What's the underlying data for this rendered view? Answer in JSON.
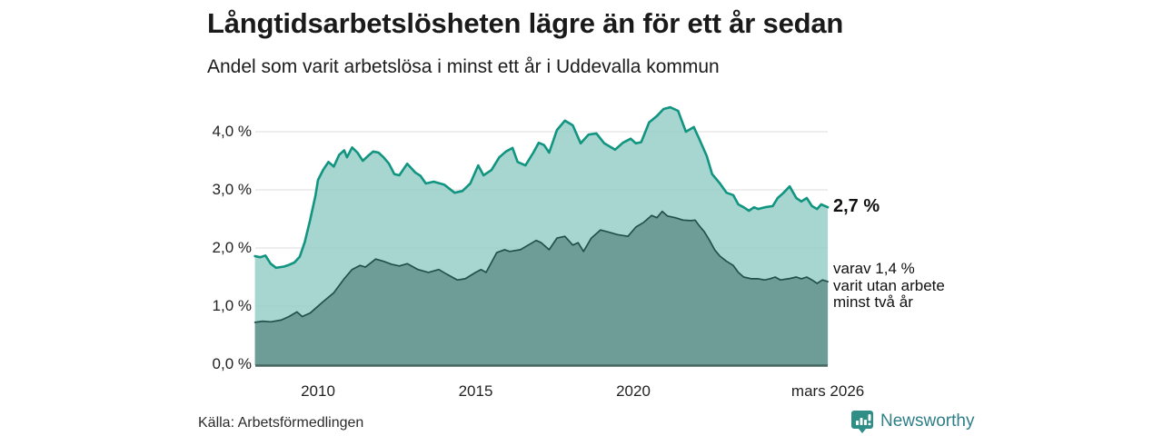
{
  "chart_data": {
    "type": "area",
    "title": "Långtidsarbetslösheten lägre än för ett år sedan",
    "subtitle": "Andel som varit arbetslösa i minst ett år i Uddevalla kommun",
    "xlim": [
      2008.0,
      2026.17
    ],
    "ylim": [
      0,
      4.5
    ],
    "grid": true,
    "legend_position": "end-of-line annotations",
    "y_ticks": [
      {
        "label": "0,0 %",
        "value": 0
      },
      {
        "label": "1,0 %",
        "value": 1
      },
      {
        "label": "2,0 %",
        "value": 2
      },
      {
        "label": "3,0 %",
        "value": 3
      },
      {
        "label": "4,0 %",
        "value": 4
      }
    ],
    "x_ticks": [
      {
        "label": "2010",
        "value": 2010
      },
      {
        "label": "2015",
        "value": 2015
      },
      {
        "label": "2020",
        "value": 2020
      },
      {
        "label": "mars 2026",
        "value": 2026.17
      }
    ],
    "annotations": {
      "total_end_value": "2,7 %",
      "two_years_end_note": "varav 1,4 %\nvarit utan arbete\nminst två år"
    },
    "series": [
      {
        "name": "arbetslösa minst ett år",
        "line_color": "#119480",
        "fill_color": "rgba(147,205,196,0.82)",
        "end_value_pct": 2.7,
        "points": [
          [
            2008.0,
            1.86
          ],
          [
            2008.17,
            1.84
          ],
          [
            2008.33,
            1.87
          ],
          [
            2008.5,
            1.73
          ],
          [
            2008.67,
            1.66
          ],
          [
            2008.92,
            1.68
          ],
          [
            2009.08,
            1.71
          ],
          [
            2009.25,
            1.75
          ],
          [
            2009.42,
            1.85
          ],
          [
            2009.58,
            2.1
          ],
          [
            2009.75,
            2.48
          ],
          [
            2009.92,
            2.9
          ],
          [
            2010.0,
            3.17
          ],
          [
            2010.17,
            3.35
          ],
          [
            2010.33,
            3.48
          ],
          [
            2010.5,
            3.4
          ],
          [
            2010.67,
            3.6
          ],
          [
            2010.83,
            3.68
          ],
          [
            2010.92,
            3.56
          ],
          [
            2011.08,
            3.73
          ],
          [
            2011.25,
            3.64
          ],
          [
            2011.42,
            3.5
          ],
          [
            2011.58,
            3.58
          ],
          [
            2011.75,
            3.66
          ],
          [
            2011.92,
            3.64
          ],
          [
            2012.08,
            3.56
          ],
          [
            2012.25,
            3.45
          ],
          [
            2012.42,
            3.27
          ],
          [
            2012.58,
            3.25
          ],
          [
            2012.83,
            3.45
          ],
          [
            2013.08,
            3.3
          ],
          [
            2013.25,
            3.24
          ],
          [
            2013.42,
            3.11
          ],
          [
            2013.67,
            3.14
          ],
          [
            2014.0,
            3.09
          ],
          [
            2014.33,
            2.95
          ],
          [
            2014.58,
            2.98
          ],
          [
            2014.83,
            3.11
          ],
          [
            2015.08,
            3.42
          ],
          [
            2015.25,
            3.25
          ],
          [
            2015.5,
            3.34
          ],
          [
            2015.75,
            3.56
          ],
          [
            2015.96,
            3.66
          ],
          [
            2016.17,
            3.72
          ],
          [
            2016.33,
            3.48
          ],
          [
            2016.58,
            3.42
          ],
          [
            2016.83,
            3.64
          ],
          [
            2017.0,
            3.81
          ],
          [
            2017.17,
            3.77
          ],
          [
            2017.33,
            3.64
          ],
          [
            2017.58,
            4.03
          ],
          [
            2017.83,
            4.19
          ],
          [
            2018.08,
            4.11
          ],
          [
            2018.33,
            3.8
          ],
          [
            2018.58,
            3.95
          ],
          [
            2018.83,
            3.97
          ],
          [
            2019.08,
            3.8
          ],
          [
            2019.42,
            3.69
          ],
          [
            2019.67,
            3.81
          ],
          [
            2019.92,
            3.88
          ],
          [
            2020.08,
            3.8
          ],
          [
            2020.25,
            3.82
          ],
          [
            2020.5,
            4.16
          ],
          [
            2020.75,
            4.27
          ],
          [
            2020.96,
            4.39
          ],
          [
            2021.17,
            4.42
          ],
          [
            2021.42,
            4.36
          ],
          [
            2021.67,
            4.0
          ],
          [
            2021.92,
            4.08
          ],
          [
            2022.08,
            3.89
          ],
          [
            2022.33,
            3.58
          ],
          [
            2022.5,
            3.27
          ],
          [
            2022.75,
            3.11
          ],
          [
            2022.96,
            2.95
          ],
          [
            2023.17,
            2.91
          ],
          [
            2023.33,
            2.75
          ],
          [
            2023.5,
            2.7
          ],
          [
            2023.67,
            2.64
          ],
          [
            2023.83,
            2.7
          ],
          [
            2023.96,
            2.67
          ],
          [
            2024.17,
            2.7
          ],
          [
            2024.42,
            2.72
          ],
          [
            2024.58,
            2.86
          ],
          [
            2024.75,
            2.94
          ],
          [
            2024.96,
            3.06
          ],
          [
            2025.17,
            2.86
          ],
          [
            2025.33,
            2.8
          ],
          [
            2025.5,
            2.86
          ],
          [
            2025.67,
            2.72
          ],
          [
            2025.83,
            2.67
          ],
          [
            2025.96,
            2.75
          ],
          [
            2026.17,
            2.7
          ]
        ]
      },
      {
        "name": "varav arbetslösa minst två år",
        "line_color": "#23504b",
        "fill_color": "rgba(98,144,138,0.82)",
        "end_value_pct": 1.4,
        "points": [
          [
            2008.0,
            0.72
          ],
          [
            2008.25,
            0.74
          ],
          [
            2008.5,
            0.73
          ],
          [
            2008.83,
            0.76
          ],
          [
            2009.08,
            0.82
          ],
          [
            2009.33,
            0.9
          ],
          [
            2009.5,
            0.82
          ],
          [
            2009.75,
            0.88
          ],
          [
            2009.96,
            0.98
          ],
          [
            2010.17,
            1.08
          ],
          [
            2010.5,
            1.23
          ],
          [
            2010.83,
            1.47
          ],
          [
            2011.08,
            1.63
          ],
          [
            2011.33,
            1.7
          ],
          [
            2011.5,
            1.67
          ],
          [
            2011.83,
            1.81
          ],
          [
            2012.08,
            1.77
          ],
          [
            2012.33,
            1.72
          ],
          [
            2012.58,
            1.69
          ],
          [
            2012.83,
            1.73
          ],
          [
            2013.17,
            1.63
          ],
          [
            2013.5,
            1.58
          ],
          [
            2013.83,
            1.63
          ],
          [
            2014.08,
            1.55
          ],
          [
            2014.42,
            1.45
          ],
          [
            2014.67,
            1.47
          ],
          [
            2015.0,
            1.58
          ],
          [
            2015.17,
            1.63
          ],
          [
            2015.33,
            1.58
          ],
          [
            2015.67,
            1.92
          ],
          [
            2015.92,
            1.97
          ],
          [
            2016.08,
            1.94
          ],
          [
            2016.42,
            1.97
          ],
          [
            2016.67,
            2.05
          ],
          [
            2016.92,
            2.13
          ],
          [
            2017.08,
            2.09
          ],
          [
            2017.33,
            1.97
          ],
          [
            2017.58,
            2.17
          ],
          [
            2017.83,
            2.2
          ],
          [
            2018.08,
            2.05
          ],
          [
            2018.25,
            2.09
          ],
          [
            2018.42,
            1.94
          ],
          [
            2018.67,
            2.17
          ],
          [
            2018.96,
            2.31
          ],
          [
            2019.17,
            2.28
          ],
          [
            2019.5,
            2.23
          ],
          [
            2019.83,
            2.2
          ],
          [
            2020.08,
            2.36
          ],
          [
            2020.33,
            2.44
          ],
          [
            2020.58,
            2.56
          ],
          [
            2020.75,
            2.52
          ],
          [
            2020.92,
            2.63
          ],
          [
            2021.08,
            2.55
          ],
          [
            2021.33,
            2.52
          ],
          [
            2021.58,
            2.48
          ],
          [
            2021.83,
            2.47
          ],
          [
            2021.96,
            2.48
          ],
          [
            2022.08,
            2.39
          ],
          [
            2022.25,
            2.28
          ],
          [
            2022.42,
            2.13
          ],
          [
            2022.58,
            1.97
          ],
          [
            2022.75,
            1.86
          ],
          [
            2022.96,
            1.77
          ],
          [
            2023.17,
            1.7
          ],
          [
            2023.33,
            1.58
          ],
          [
            2023.5,
            1.5
          ],
          [
            2023.75,
            1.47
          ],
          [
            2023.96,
            1.47
          ],
          [
            2024.17,
            1.45
          ],
          [
            2024.33,
            1.47
          ],
          [
            2024.5,
            1.5
          ],
          [
            2024.67,
            1.45
          ],
          [
            2024.92,
            1.47
          ],
          [
            2025.17,
            1.5
          ],
          [
            2025.33,
            1.47
          ],
          [
            2025.5,
            1.5
          ],
          [
            2025.67,
            1.45
          ],
          [
            2025.83,
            1.39
          ],
          [
            2026.0,
            1.45
          ],
          [
            2026.17,
            1.42
          ]
        ]
      }
    ],
    "colors": {
      "grid": "#dcdcdc",
      "axis_baseline": "#47665f",
      "accent_teal": "#119480",
      "dark_area": "#6e9c96",
      "light_area": "#aad6cf"
    }
  },
  "footer": {
    "source": "Källa: Arbetsförmedlingen",
    "brand": "Newsworthy",
    "brand_color": "#2f7f88",
    "brand_icon": "newsworthy-speech-bubble-bar-chart"
  }
}
